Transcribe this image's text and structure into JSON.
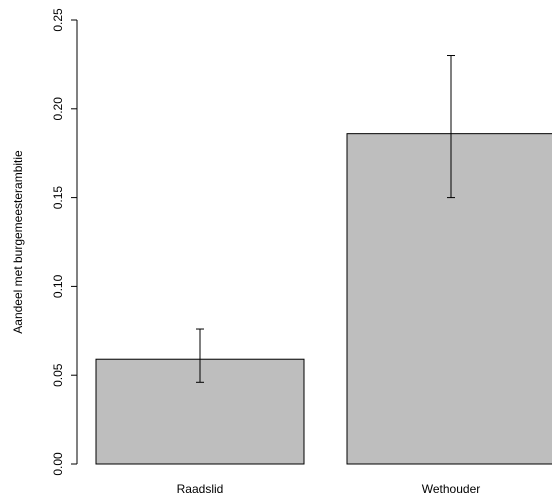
{
  "chart_data": {
    "type": "bar",
    "title": "",
    "xlabel": "",
    "ylabel": "Aandeel met burgemeesterambitie",
    "categories": [
      "Raadslid",
      "Wethouder"
    ],
    "values": [
      0.059,
      0.186
    ],
    "error_low": [
      0.046,
      0.15
    ],
    "error_high": [
      0.076,
      0.23
    ],
    "ylim": [
      0,
      0.25
    ],
    "yticks": [
      0.0,
      0.05,
      0.1,
      0.15,
      0.2,
      0.25
    ],
    "ytick_labels": [
      "0.00",
      "0.05",
      "0.10",
      "0.15",
      "0.20",
      "0.25"
    ],
    "bar_color": "#bebebe",
    "grid": false,
    "legend": "none"
  }
}
